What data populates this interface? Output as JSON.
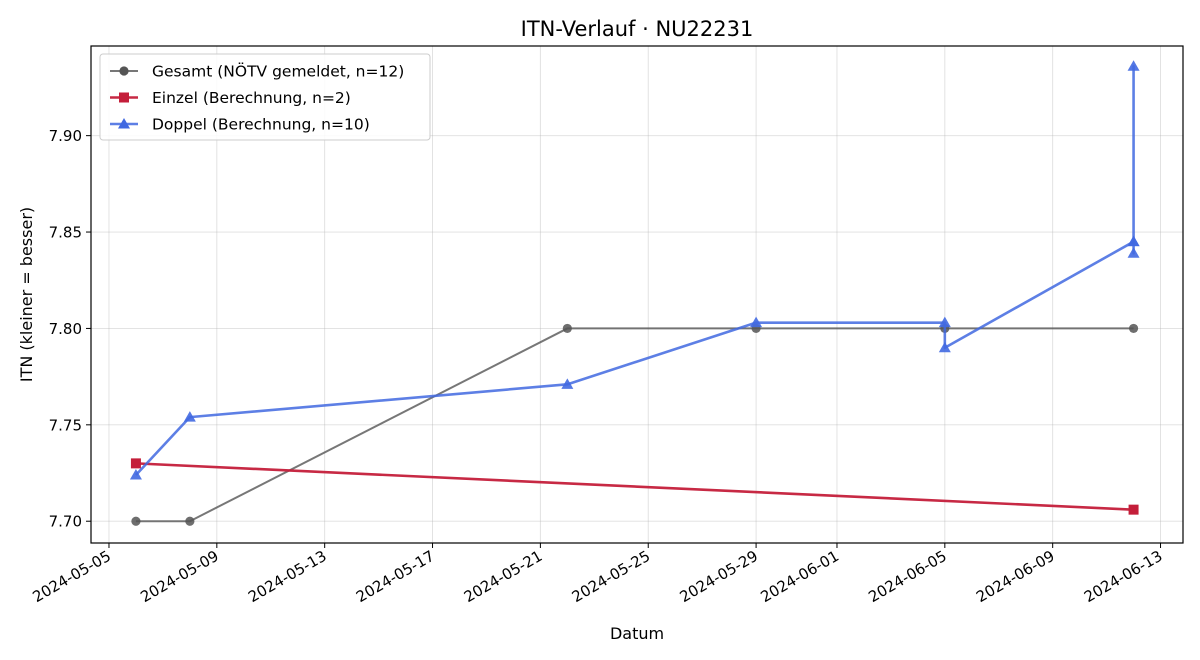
{
  "chart_data": {
    "type": "line",
    "title": "ITN-Verlauf · NU22231",
    "xlabel": "Datum",
    "ylabel": "ITN  (kleiner = besser)",
    "xlim": [
      "2024-05-04T08:00",
      "2024-06-13T20:00"
    ],
    "ylim": [
      7.6887,
      7.9465
    ],
    "x_ticks": [
      "2024-05-05",
      "2024-05-09",
      "2024-05-13",
      "2024-05-17",
      "2024-05-21",
      "2024-05-25",
      "2024-05-29",
      "2024-06-01",
      "2024-06-05",
      "2024-06-09",
      "2024-06-13"
    ],
    "y_ticks": [
      "7.70",
      "7.75",
      "7.80",
      "7.85",
      "7.90"
    ],
    "grid": true,
    "legend_position": "top-left",
    "series": [
      {
        "name": "Gesamt (NÖTV gemeldet, n=12)",
        "color": "#555555",
        "marker": "circle",
        "x": [
          "2024-05-06",
          "2024-05-08",
          "2024-05-22",
          "2024-05-29",
          "2024-06-05",
          "2024-06-12"
        ],
        "y": [
          7.7,
          7.7,
          7.8,
          7.8,
          7.8,
          7.8
        ]
      },
      {
        "name": "Einzel (Berechnung, n=2)",
        "color": "#c41e3a",
        "marker": "square",
        "x": [
          "2024-05-06",
          "2024-06-12"
        ],
        "y": [
          7.73,
          7.706
        ]
      },
      {
        "name": "Doppel (Berechnung, n=10)",
        "color": "#4169e1",
        "marker": "triangle",
        "x": [
          "2024-05-06",
          "2024-05-08",
          "2024-05-22",
          "2024-05-29",
          "2024-06-05",
          "2024-06-05",
          "2024-06-12",
          "2024-06-12",
          "2024-06-12",
          "2024-06-12"
        ],
        "y": [
          7.724,
          7.754,
          7.771,
          7.803,
          7.803,
          7.79,
          7.845,
          7.839,
          7.936,
          7.845
        ]
      }
    ]
  }
}
